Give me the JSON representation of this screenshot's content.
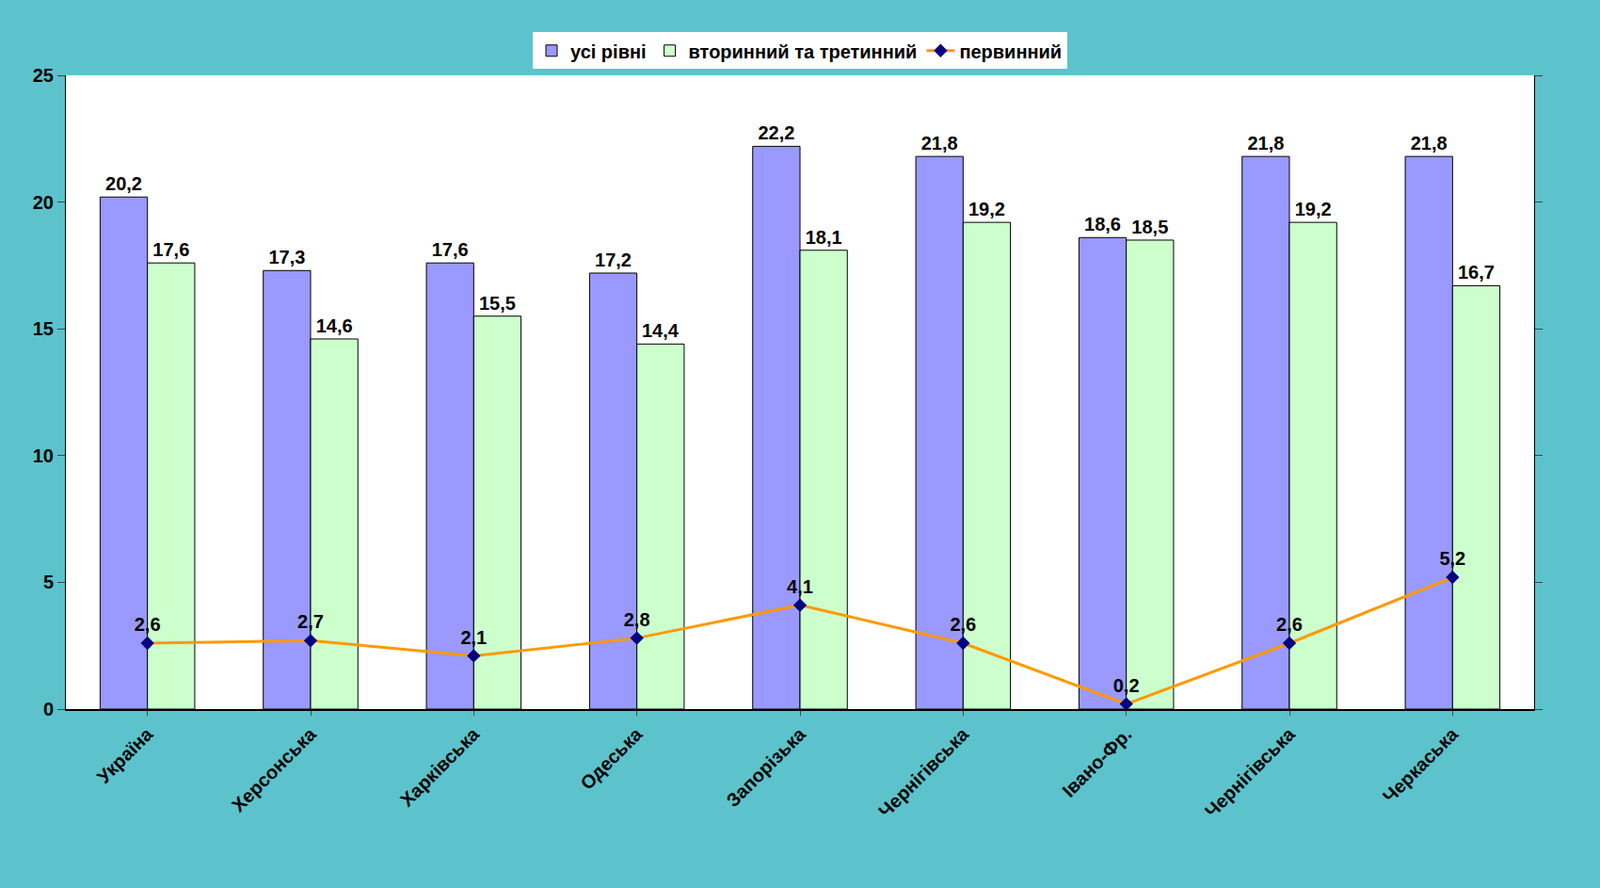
{
  "chart_data": {
    "type": "bar",
    "categories": [
      "Україна",
      "Херсонська",
      "Харківська",
      "Одеська",
      "Запорізька",
      "Чернігівська",
      "Івано-Фр.",
      "Чернігівська",
      "Черкаська"
    ],
    "series": [
      {
        "name": "усі рівні",
        "type": "bar",
        "color": "#9999ff",
        "values": [
          20.2,
          17.3,
          17.6,
          17.2,
          22.2,
          21.8,
          18.6,
          21.8,
          21.8
        ],
        "value_labels": [
          "20,2",
          "17,3",
          "17,6",
          "17,2",
          "22,2",
          "21,8",
          "18,6",
          "21,8",
          "21,8"
        ]
      },
      {
        "name": "вторинний та третинний",
        "type": "bar",
        "color": "#ccffcc",
        "values": [
          17.6,
          14.6,
          15.5,
          14.4,
          18.1,
          19.2,
          18.5,
          19.2,
          16.7
        ],
        "value_labels": [
          "17,6",
          "14,6",
          "15,5",
          "14,4",
          "18,1",
          "19,2",
          "18,5",
          "19,2",
          "16,7"
        ]
      },
      {
        "name": "первинний",
        "type": "line",
        "color": "#ff9900",
        "marker": "diamond",
        "values": [
          2.6,
          2.7,
          2.1,
          2.8,
          4.1,
          2.6,
          0.2,
          2.6,
          5.2
        ],
        "value_labels": [
          "2,6",
          "2,7",
          "2,1",
          "2,8",
          "4,1",
          "2,6",
          "0,2",
          "2,6",
          "5,2"
        ]
      }
    ],
    "ylim": [
      0,
      25
    ],
    "yticks": [
      0,
      5,
      10,
      15,
      20,
      25
    ],
    "grid": false,
    "legend": "top",
    "data_labels": true
  }
}
